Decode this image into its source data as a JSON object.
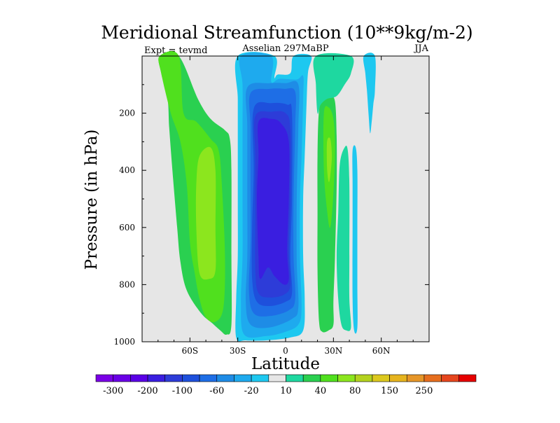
{
  "chart_data": {
    "type": "heatmap",
    "title": "Meridional Streamfunction (10**9kg/m-2)",
    "subtitle_left": "Expt = tevmd",
    "subtitle_center": "Asselian 297MaBP",
    "subtitle_right": "JJA",
    "xlabel": "Latitude",
    "ylabel": "Pressure (in hPa)",
    "xlim": [
      -90,
      90
    ],
    "ylim": [
      1000,
      0
    ],
    "x_ticks": [
      {
        "value": -60,
        "label": "60S"
      },
      {
        "value": -30,
        "label": "30S"
      },
      {
        "value": 0,
        "label": "0"
      },
      {
        "value": 30,
        "label": "30N"
      },
      {
        "value": 60,
        "label": "60N"
      }
    ],
    "y_ticks": [
      {
        "value": 200,
        "label": "200"
      },
      {
        "value": 400,
        "label": "400"
      },
      {
        "value": 600,
        "label": "600"
      },
      {
        "value": 800,
        "label": "800"
      },
      {
        "value": 1000,
        "label": "1000"
      }
    ],
    "background_color": "#e6e6e6",
    "colorbar": {
      "colors": [
        "#7a00e6",
        "#6a00e6",
        "#5a00e6",
        "#3a1ee0",
        "#2d3cd8",
        "#1e50dc",
        "#1e6ee6",
        "#1e8ce6",
        "#1eaaee",
        "#1ec8f0",
        "#e6e6e6",
        "#1ed8a0",
        "#2ad050",
        "#50e01e",
        "#8ce61e",
        "#b4d21e",
        "#dcc81e",
        "#e6b41e",
        "#e69628",
        "#e66e1e",
        "#e6461e",
        "#e60000"
      ],
      "labels": [
        {
          "boundary": 1,
          "text": "-300"
        },
        {
          "boundary": 3,
          "text": "-200"
        },
        {
          "boundary": 5,
          "text": "-100"
        },
        {
          "boundary": 7,
          "text": "-60"
        },
        {
          "boundary": 9,
          "text": "-20"
        },
        {
          "boundary": 11,
          "text": "10"
        },
        {
          "boundary": 13,
          "text": "40"
        },
        {
          "boundary": 15,
          "text": "80"
        },
        {
          "boundary": 17,
          "text": "150"
        },
        {
          "boundary": 19,
          "text": "250"
        }
      ]
    },
    "regions": [
      {
        "name": "sh-ferrel-outer",
        "value": 10,
        "color": "#2ad050",
        "outline": [
          [
            -79,
            0
          ],
          [
            -67,
            0
          ],
          [
            -55,
            150
          ],
          [
            -47,
            220
          ],
          [
            -38,
            260
          ],
          [
            -35,
            290
          ],
          [
            -34,
            400
          ],
          [
            -34,
            700
          ],
          [
            -34,
            940
          ],
          [
            -37,
            975
          ],
          [
            -41,
            960
          ],
          [
            -46,
            935
          ],
          [
            -53,
            900
          ],
          [
            -62,
            820
          ],
          [
            -66,
            720
          ],
          [
            -68,
            600
          ],
          [
            -71,
            400
          ],
          [
            -73,
            250
          ],
          [
            -74,
            150
          ],
          [
            -78,
            60
          ]
        ]
      },
      {
        "name": "sh-ferrel-mid",
        "value": 40,
        "color": "#50e01e",
        "outline": [
          [
            -79,
            0
          ],
          [
            -67,
            0
          ],
          [
            -64,
            200
          ],
          [
            -56,
            230
          ],
          [
            -47,
            290
          ],
          [
            -42,
            330
          ],
          [
            -40,
            450
          ],
          [
            -38,
            700
          ],
          [
            -39,
            880
          ],
          [
            -44,
            930
          ],
          [
            -50,
            915
          ],
          [
            -54,
            850
          ],
          [
            -57,
            760
          ],
          [
            -60,
            650
          ],
          [
            -62,
            450
          ],
          [
            -66,
            300
          ],
          [
            -72,
            200
          ],
          [
            -78,
            60
          ]
        ]
      },
      {
        "name": "sh-ferrel-core",
        "value": 80,
        "color": "#8ce61e",
        "outline": [
          [
            -54,
            350
          ],
          [
            -47,
            320
          ],
          [
            -44,
            400
          ],
          [
            -44,
            600
          ],
          [
            -44,
            750
          ],
          [
            -48,
            780
          ],
          [
            -54,
            760
          ],
          [
            -56,
            600
          ],
          [
            -56,
            450
          ]
        ]
      },
      {
        "name": "hadley-outer",
        "value": -20,
        "color": "#1ec8f0",
        "outline": [
          [
            -30,
            0
          ],
          [
            -7,
            0
          ],
          [
            -7,
            75
          ],
          [
            -5,
            65
          ],
          [
            3,
            60
          ],
          [
            5,
            0
          ],
          [
            16,
            0
          ],
          [
            14,
            60
          ],
          [
            13,
            190
          ],
          [
            12,
            350
          ],
          [
            11,
            500
          ],
          [
            11,
            700
          ],
          [
            12,
            850
          ],
          [
            11,
            960
          ],
          [
            3,
            985
          ],
          [
            -12,
            995
          ],
          [
            -25,
            995
          ],
          [
            -31,
            985
          ],
          [
            -31,
            850
          ],
          [
            -30,
            700
          ],
          [
            -30,
            500
          ],
          [
            -30,
            300
          ],
          [
            -30,
            150
          ]
        ]
      },
      {
        "name": "hadley-2",
        "value": -60,
        "color": "#1eaaee",
        "outline": [
          [
            -28,
            0
          ],
          [
            -9,
            0
          ],
          [
            -9,
            90
          ],
          [
            -4,
            80
          ],
          [
            7,
            82
          ],
          [
            11,
            70
          ],
          [
            11,
            150
          ],
          [
            10,
            350
          ],
          [
            9,
            500
          ],
          [
            9,
            700
          ],
          [
            10,
            880
          ],
          [
            8,
            940
          ],
          [
            0,
            965
          ],
          [
            -12,
            980
          ],
          [
            -26,
            975
          ],
          [
            -28,
            860
          ],
          [
            -27,
            700
          ],
          [
            -27,
            500
          ],
          [
            -27,
            250
          ],
          [
            -27,
            100
          ]
        ]
      },
      {
        "name": "hadley-3",
        "value": -100,
        "color": "#1e8ce6",
        "outline": [
          [
            -24,
            110
          ],
          [
            -10,
            95
          ],
          [
            0,
            95
          ],
          [
            8,
            100
          ],
          [
            8,
            250
          ],
          [
            7,
            500
          ],
          [
            7,
            720
          ],
          [
            8,
            880
          ],
          [
            4,
            920
          ],
          [
            -10,
            950
          ],
          [
            -22,
            940
          ],
          [
            -25,
            860
          ],
          [
            -24,
            700
          ],
          [
            -24,
            500
          ],
          [
            -24,
            250
          ]
        ]
      },
      {
        "name": "hadley-4",
        "value": -150,
        "color": "#1e6ee6",
        "outline": [
          [
            -22,
            130
          ],
          [
            -10,
            115
          ],
          [
            -1,
            115
          ],
          [
            6,
            125
          ],
          [
            6,
            250
          ],
          [
            5,
            500
          ],
          [
            5,
            700
          ],
          [
            6,
            850
          ],
          [
            2,
            890
          ],
          [
            -10,
            910
          ],
          [
            -20,
            900
          ],
          [
            -23,
            820
          ],
          [
            -22,
            650
          ],
          [
            -22,
            450
          ],
          [
            -22,
            250
          ]
        ]
      },
      {
        "name": "hadley-5",
        "value": -200,
        "color": "#1e50dc",
        "outline": [
          [
            -20,
            185
          ],
          [
            -9,
            165
          ],
          [
            1,
            170
          ],
          [
            4,
            200
          ],
          [
            4,
            500
          ],
          [
            3,
            700
          ],
          [
            4,
            830
          ],
          [
            0,
            860
          ],
          [
            -10,
            875
          ],
          [
            -18,
            860
          ],
          [
            -21,
            780
          ],
          [
            -21,
            600
          ],
          [
            -20,
            400
          ]
        ]
      },
      {
        "name": "hadley-6",
        "value": -250,
        "color": "#2d3cd8",
        "outline": [
          [
            -19,
            210
          ],
          [
            -9,
            195
          ],
          [
            0,
            200
          ],
          [
            3,
            260
          ],
          [
            3,
            500
          ],
          [
            2,
            680
          ],
          [
            3,
            800
          ],
          [
            -1,
            835
          ],
          [
            -10,
            845
          ],
          [
            -17,
            830
          ],
          [
            -19,
            750
          ],
          [
            -19,
            550
          ],
          [
            -19,
            350
          ]
        ]
      },
      {
        "name": "hadley-core",
        "value": -300,
        "color": "#3a1ee0",
        "outline": [
          [
            -17,
            230
          ],
          [
            -9,
            220
          ],
          [
            -3,
            235
          ],
          [
            2,
            300
          ],
          [
            2,
            500
          ],
          [
            1,
            680
          ],
          [
            2,
            780
          ],
          [
            -1,
            800
          ],
          [
            -7,
            770
          ],
          [
            -11,
            740
          ],
          [
            -16,
            780
          ],
          [
            -17,
            700
          ],
          [
            -18,
            500
          ],
          [
            -17,
            350
          ]
        ]
      },
      {
        "name": "nh-ferrel-outer",
        "value": 10,
        "color": "#2ad050",
        "outline": [
          [
            21,
            190
          ],
          [
            24,
            150
          ],
          [
            28,
            140
          ],
          [
            31,
            160
          ],
          [
            32,
            280
          ],
          [
            32,
            460
          ],
          [
            31,
            700
          ],
          [
            30,
            860
          ],
          [
            30,
            940
          ],
          [
            27,
            960
          ],
          [
            23,
            965
          ],
          [
            21,
            930
          ],
          [
            20,
            750
          ],
          [
            20,
            550
          ],
          [
            20,
            350
          ]
        ]
      },
      {
        "name": "nh-ferrel-mid",
        "value": 40,
        "color": "#50e01e",
        "outline": [
          [
            24,
            200
          ],
          [
            27,
            180
          ],
          [
            30,
            220
          ],
          [
            31,
            320
          ],
          [
            30,
            480
          ],
          [
            28,
            600
          ],
          [
            26,
            540
          ],
          [
            24,
            400
          ]
        ]
      },
      {
        "name": "nh-ferrel-core",
        "value": 80,
        "color": "#8ce61e",
        "outline": [
          [
            26,
            300
          ],
          [
            28,
            290
          ],
          [
            29,
            350
          ],
          [
            28,
            420
          ],
          [
            27,
            440
          ],
          [
            26,
            390
          ]
        ]
      },
      {
        "name": "nh-band-a",
        "value": 10,
        "color": "#1ed8a0",
        "outline": [
          [
            19,
            0
          ],
          [
            41,
            0
          ],
          [
            41,
            60
          ],
          [
            37,
            100
          ],
          [
            32,
            140
          ],
          [
            26,
            150
          ],
          [
            22,
            170
          ],
          [
            20,
            200
          ],
          [
            19,
            100
          ]
        ]
      },
      {
        "name": "nh-band-b",
        "value": 10,
        "color": "#1ed8a0",
        "outline": [
          [
            34,
            380
          ],
          [
            37,
            320
          ],
          [
            39,
            330
          ],
          [
            40,
            450
          ],
          [
            40,
            700
          ],
          [
            40,
            850
          ],
          [
            41,
            950
          ],
          [
            38,
            960
          ],
          [
            35,
            940
          ],
          [
            33,
            850
          ],
          [
            32,
            700
          ],
          [
            33,
            550
          ]
        ]
      },
      {
        "name": "nh-band-c",
        "value": -20,
        "color": "#1ec8f0",
        "outline": [
          [
            49,
            0
          ],
          [
            56,
            0
          ],
          [
            56,
            120
          ],
          [
            55,
            170
          ],
          [
            54,
            230
          ],
          [
            53,
            270
          ],
          [
            52,
            200
          ],
          [
            51,
            120
          ],
          [
            50,
            60
          ]
        ]
      },
      {
        "name": "nh-band-d",
        "value": -20,
        "color": "#1ec8f0",
        "outline": [
          [
            42,
            330
          ],
          [
            44,
            320
          ],
          [
            45,
            400
          ],
          [
            45,
            600
          ],
          [
            45,
            800
          ],
          [
            45,
            950
          ],
          [
            43,
            960
          ],
          [
            42,
            850
          ],
          [
            42,
            600
          ],
          [
            42,
            450
          ]
        ]
      }
    ]
  }
}
